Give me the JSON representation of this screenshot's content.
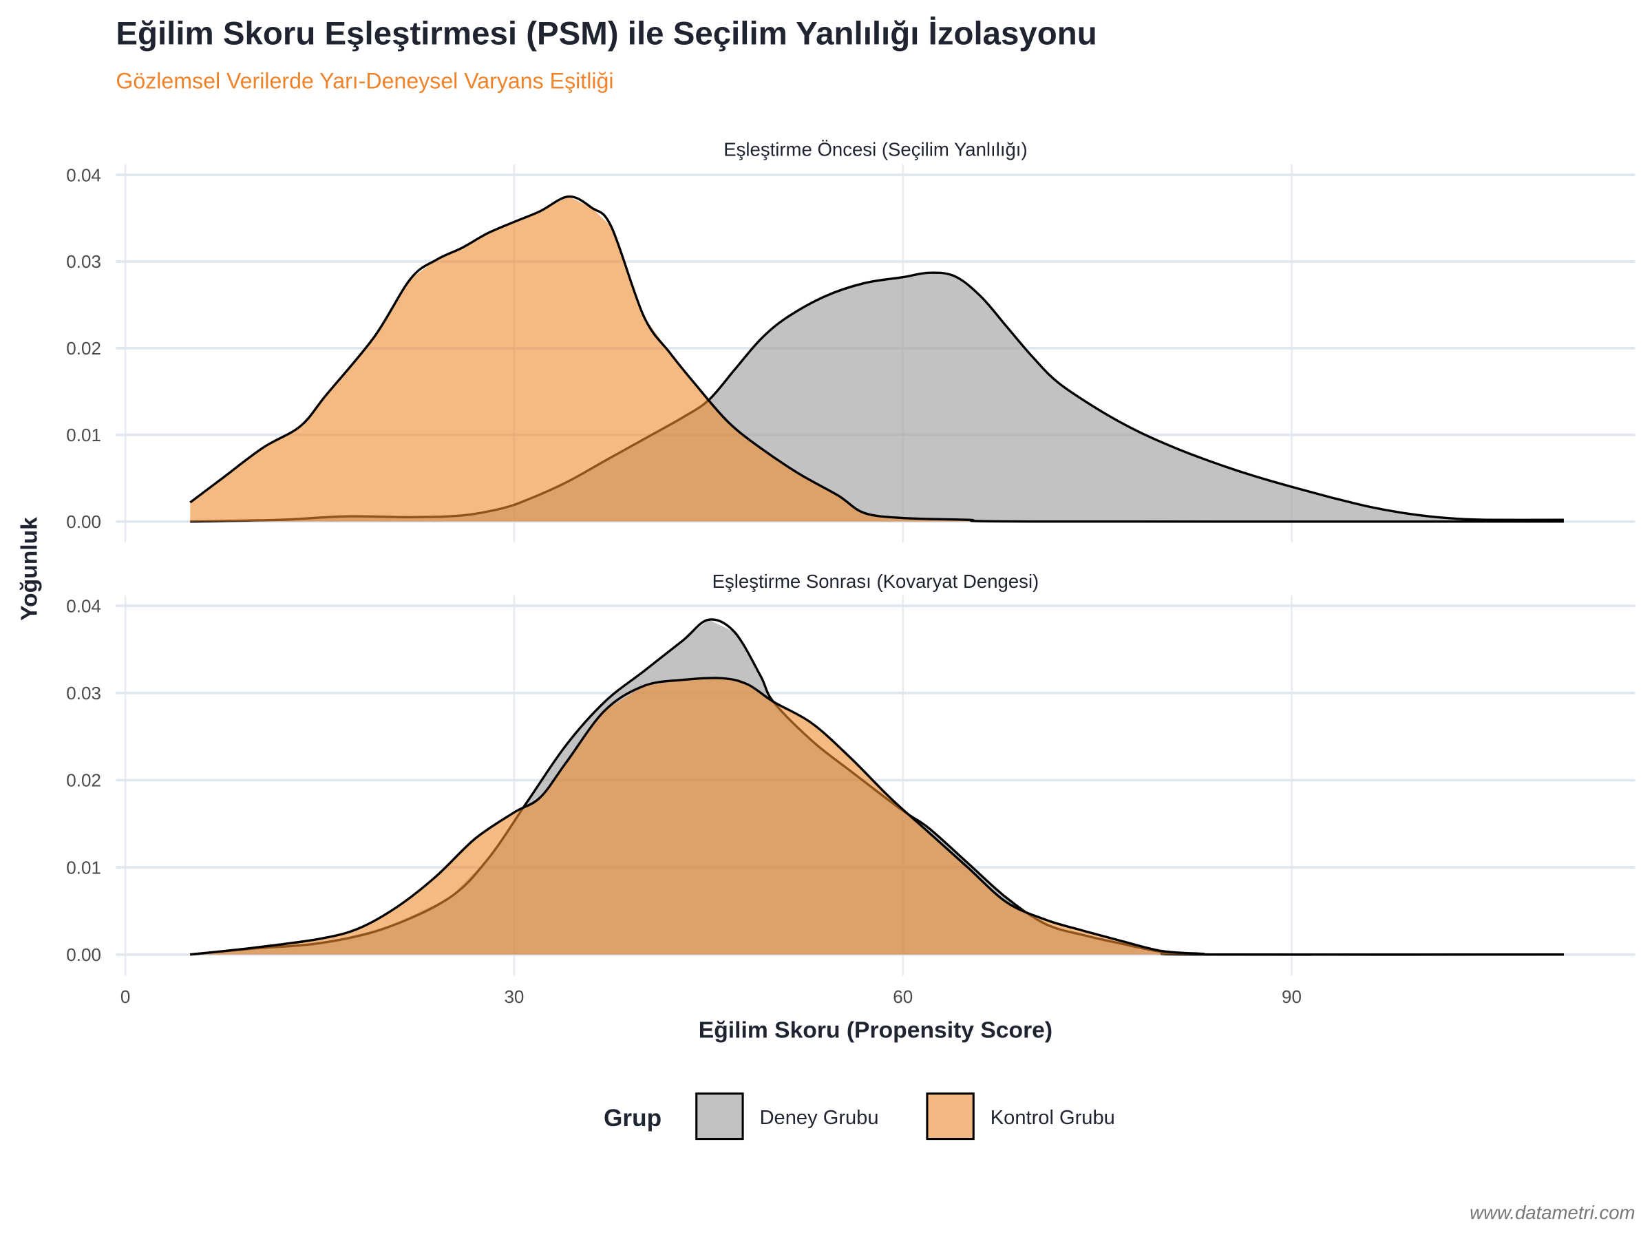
{
  "chart_data": {
    "type": "area",
    "title": "Eğilim Skoru Eşleştirmesi (PSM) ile Seçilim Yanlılığı İzolasyonu",
    "subtitle": "Gözlemsel Verilerde Yarı-Deneysel Varyans Eşitliği",
    "xlabel": "Eğilim Skoru (Propensity Score)",
    "ylabel": "Yoğunluk",
    "caption": "www.datametri.com",
    "xlim": [
      0,
      115
    ],
    "ylim": [
      0,
      0.04
    ],
    "x_ticks": [
      "0",
      "30",
      "60",
      "90"
    ],
    "x_tick_values": [
      0,
      30,
      60,
      90
    ],
    "y_ticks": [
      "0.00",
      "0.01",
      "0.02",
      "0.03",
      "0.04"
    ],
    "y_tick_values": [
      0,
      0.01,
      0.02,
      0.03,
      0.04
    ],
    "grid": true,
    "legend": {
      "title": "Grup",
      "position": "bottom",
      "entries": [
        {
          "name": "Deney Grubu",
          "color": "#9e9e9e"
        },
        {
          "name": "Kontrol Grubu",
          "color": "#ee8a2f"
        }
      ]
    },
    "panels": [
      {
        "title": "Eşleştirme Öncesi (Seçilim Yanlılığı)",
        "series": [
          {
            "name": "Deney Grubu",
            "x": [
              5,
              12,
              17,
              22,
              26,
              29,
              31,
              34,
              37,
              40,
              43,
              45,
              47,
              49,
              51,
              54,
              57,
              60,
              62,
              64,
              66,
              68,
              70,
              72,
              75,
              78,
              81,
              84,
              87,
              90,
              93,
              96,
              99,
              102,
              105,
              111
            ],
            "y": [
              0,
              0.0002,
              0.0006,
              0.0005,
              0.0007,
              0.0015,
              0.0025,
              0.0045,
              0.007,
              0.0095,
              0.012,
              0.014,
              0.0175,
              0.021,
              0.0235,
              0.026,
              0.0275,
              0.0282,
              0.0287,
              0.0283,
              0.026,
              0.0225,
              0.019,
              0.016,
              0.013,
              0.0105,
              0.0085,
              0.0068,
              0.0053,
              0.004,
              0.0028,
              0.0017,
              0.0009,
              0.0004,
              0.0002,
              0.0002
            ]
          },
          {
            "name": "Kontrol Grubu",
            "x": [
              5,
              7.4,
              10.6,
              13.5,
              15.5,
              19.2,
              22,
              24,
              26,
              28,
              30.2,
              32,
              34.2,
              36,
              37.5,
              40,
              42,
              44,
              46.5,
              49,
              52,
              55,
              57,
              60,
              65,
              70,
              111
            ],
            "y": [
              0.0022,
              0.0049,
              0.0085,
              0.011,
              0.0146,
              0.0213,
              0.028,
              0.0302,
              0.0316,
              0.0333,
              0.0347,
              0.0358,
              0.0375,
              0.0362,
              0.034,
              0.0237,
              0.0195,
              0.0158,
              0.0115,
              0.0085,
              0.0055,
              0.003,
              0.001,
              0.0004,
              0.0002,
              0,
              0
            ]
          }
        ]
      },
      {
        "title": "Eşleştirme Sonrası (Kovaryat Dengesi)",
        "series": [
          {
            "name": "Deney Grubu",
            "x": [
              5,
              10,
              15,
              20,
              25,
              28,
              31,
              34,
              37,
              40,
              43,
              45,
              47,
              49,
              50,
              53,
              56,
              60,
              62,
              65,
              68,
              71,
              74,
              77,
              80,
              83,
              111
            ],
            "y": [
              0,
              0.0007,
              0.0013,
              0.003,
              0.0065,
              0.011,
              0.0175,
              0.024,
              0.029,
              0.0325,
              0.036,
              0.0384,
              0.037,
              0.032,
              0.029,
              0.0245,
              0.021,
              0.0165,
              0.0145,
              0.0105,
              0.0065,
              0.0035,
              0.0022,
              0.0012,
              0.0003,
              0,
              0
            ]
          },
          {
            "name": "Kontrol Grubu",
            "x": [
              5,
              10,
              15,
              18,
              21,
              24,
              27,
              30,
              32,
              34,
              37,
              40,
              43,
              46,
              48,
              50,
              53,
              56,
              59,
              62,
              65,
              68,
              71,
              74,
              77,
              80,
              83,
              86,
              111
            ],
            "y": [
              0,
              0.0008,
              0.0018,
              0.003,
              0.0055,
              0.009,
              0.0133,
              0.0163,
              0.018,
              0.022,
              0.028,
              0.0308,
              0.0315,
              0.0317,
              0.031,
              0.029,
              0.0265,
              0.0225,
              0.018,
              0.014,
              0.01,
              0.006,
              0.004,
              0.0027,
              0.0015,
              0.0004,
              0.0001,
              0,
              0
            ]
          }
        ]
      }
    ]
  }
}
